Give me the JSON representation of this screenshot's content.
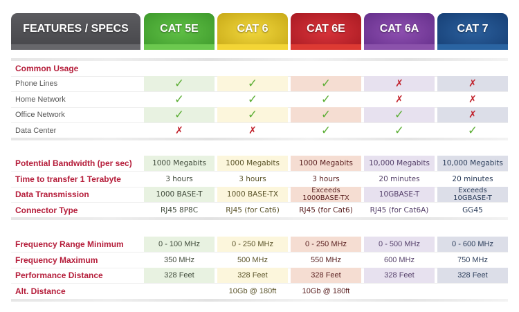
{
  "header": {
    "features_label": "FEATURES / SPECS",
    "columns": [
      "CAT 5E",
      "CAT 6",
      "CAT 6E",
      "CAT 6A",
      "CAT 7"
    ],
    "colors": [
      "#3e9a2c",
      "#d4b71f",
      "#b8222a",
      "#713a98",
      "#1c477f"
    ]
  },
  "common_usage": {
    "title": "Common Usage",
    "rows": [
      {
        "label": "Phone Lines",
        "values": [
          "✓",
          "✓",
          "✓",
          "✗",
          "✗"
        ]
      },
      {
        "label": "Home Network",
        "values": [
          "✓",
          "✓",
          "✓",
          "✗",
          "✗"
        ]
      },
      {
        "label": "Office Network",
        "values": [
          "✓",
          "✓",
          "✓",
          "✓",
          "✗"
        ]
      },
      {
        "label": "Data Center",
        "values": [
          "✗",
          "✗",
          "✓",
          "✓",
          "✓"
        ]
      }
    ]
  },
  "performance": {
    "rows": [
      {
        "label": "Potential Bandwidth (per sec)",
        "values": [
          "1000 Megabits",
          "1000 Megabits",
          "1000 Megabits",
          "10,000 Megabits",
          "10,000 Megabits"
        ]
      },
      {
        "label": "Time to transfer 1 Terabyte",
        "values": [
          "3 hours",
          "3 hours",
          "3 hours",
          "20 minutes",
          "20 minutes"
        ]
      },
      {
        "label": "Data Transmission",
        "values": [
          "1000 BASE-T",
          "1000 BASE-TX",
          [
            "Exceeds",
            "1000BASE-TX"
          ],
          "10GBASE-T",
          [
            "Exceeds",
            "10GBASE-T"
          ]
        ]
      },
      {
        "label": "Connector Type",
        "values": [
          "RJ45 8P8C",
          "RJ45 (for Cat6)",
          "RJ45 (for Cat6)",
          "RJ45 (for Cat6A)",
          "GG45"
        ]
      }
    ]
  },
  "frequency": {
    "rows": [
      {
        "label": "Frequency Range Minimum",
        "values": [
          "0 - 100 MHz",
          "0 - 250 MHz",
          "0 - 250 MHz",
          "0 - 500 MHz",
          "0 - 600 MHz"
        ]
      },
      {
        "label": "Frequency Maximum",
        "values": [
          "350 MHz",
          "500 MHz",
          "550 MHz",
          "600 MHz",
          "750 MHz"
        ]
      },
      {
        "label": "Performance Distance",
        "values": [
          "328 Feet",
          "328 Feet",
          "328 Feet",
          "328 Feet",
          "328 Feet"
        ]
      },
      {
        "label": "Alt. Distance",
        "values": [
          "",
          "10Gb @ 180ft",
          "10Gb @ 180ft",
          "",
          ""
        ]
      }
    ]
  }
}
